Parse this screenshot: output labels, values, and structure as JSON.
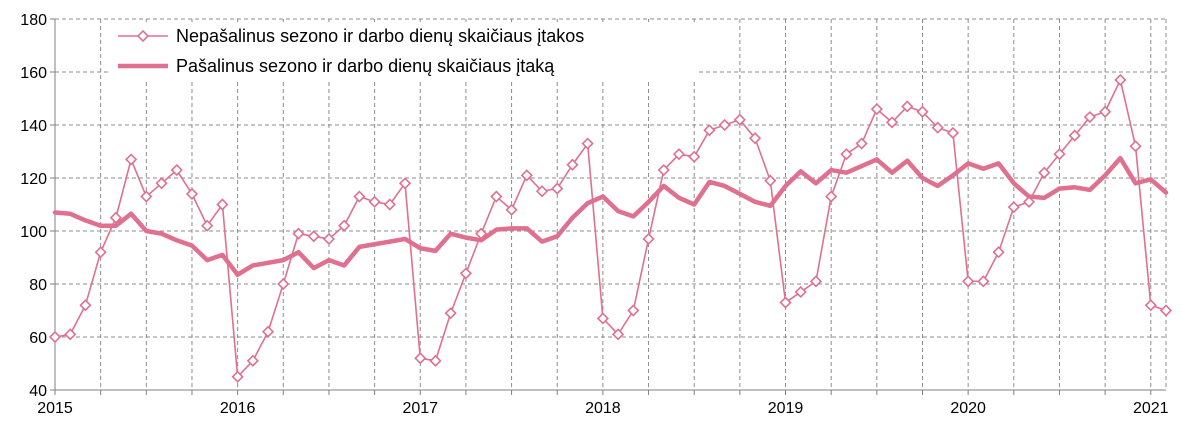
{
  "chart_data": {
    "type": "line",
    "y_ticks": [
      "40",
      "60",
      "80",
      "100",
      "120",
      "140",
      "160",
      "180"
    ],
    "ylim": [
      40,
      180
    ],
    "x_tick_labels": [
      "2015",
      "2016",
      "2017",
      "2018",
      "2019",
      "2020",
      "2021"
    ],
    "x": [
      "2015-01",
      "2015-02",
      "2015-03",
      "2015-04",
      "2015-05",
      "2015-06",
      "2015-07",
      "2015-08",
      "2015-09",
      "2015-10",
      "2015-11",
      "2015-12",
      "2016-01",
      "2016-02",
      "2016-03",
      "2016-04",
      "2016-05",
      "2016-06",
      "2016-07",
      "2016-08",
      "2016-09",
      "2016-10",
      "2016-11",
      "2016-12",
      "2017-01",
      "2017-02",
      "2017-03",
      "2017-04",
      "2017-05",
      "2017-06",
      "2017-07",
      "2017-08",
      "2017-09",
      "2017-10",
      "2017-11",
      "2017-12",
      "2018-01",
      "2018-02",
      "2018-03",
      "2018-04",
      "2018-05",
      "2018-06",
      "2018-07",
      "2018-08",
      "2018-09",
      "2018-10",
      "2018-11",
      "2018-12",
      "2019-01",
      "2019-02",
      "2019-03",
      "2019-04",
      "2019-05",
      "2019-06",
      "2019-07",
      "2019-08",
      "2019-09",
      "2019-10",
      "2019-11",
      "2019-12",
      "2020-01",
      "2020-02",
      "2020-03",
      "2020-04",
      "2020-05",
      "2020-06",
      "2020-07",
      "2020-08",
      "2020-09",
      "2020-10",
      "2020-11",
      "2020-12",
      "2021-01",
      "2021-02"
    ],
    "grid": "dashed",
    "legend_placement": "top-left",
    "series": [
      {
        "name": "Nepašalinus sezono ir darbo dienų skaičiaus įtakos",
        "color": "#E0708F",
        "style": "thin-line-diamond-markers",
        "values": [
          60,
          61,
          72,
          92,
          105,
          127,
          113,
          118,
          123,
          114,
          102,
          110,
          45,
          51,
          62,
          80,
          99,
          98,
          97,
          102,
          113,
          111,
          110,
          118,
          52,
          51,
          69,
          84,
          99,
          113,
          108,
          121,
          115,
          116,
          125,
          133,
          67,
          61,
          70,
          97,
          123,
          129,
          128,
          138,
          140,
          142,
          135,
          119,
          73,
          77,
          81,
          113,
          129,
          133,
          146,
          141,
          147,
          145,
          139,
          137,
          81,
          81,
          92,
          109,
          111,
          122,
          129,
          136,
          143,
          145,
          157,
          132,
          72,
          70
        ]
      },
      {
        "name": "Pašalinus sezono ir darbo dienų skaičiaus įtaką",
        "color": "#E0708F",
        "style": "thick-line",
        "values": [
          107,
          106.5,
          104,
          102,
          102,
          106.5,
          100,
          99,
          96.5,
          94.5,
          89,
          91,
          83.5,
          87,
          88,
          89,
          92,
          86,
          89,
          87,
          94,
          95,
          96,
          97,
          93.5,
          92.5,
          99,
          97.5,
          96.5,
          100.5,
          101,
          101,
          96,
          98,
          105,
          110.5,
          113,
          107.5,
          105.5,
          111,
          117,
          112.5,
          110,
          118.5,
          117,
          114,
          111,
          109.5,
          117,
          122.5,
          118,
          123,
          122,
          124.5,
          127,
          122,
          126.5,
          120,
          117,
          121,
          125.5,
          123.5,
          125.5,
          118,
          113,
          112.5,
          116,
          116.5,
          115.5,
          121,
          127.5,
          118,
          119.5,
          114.5
        ]
      }
    ]
  }
}
